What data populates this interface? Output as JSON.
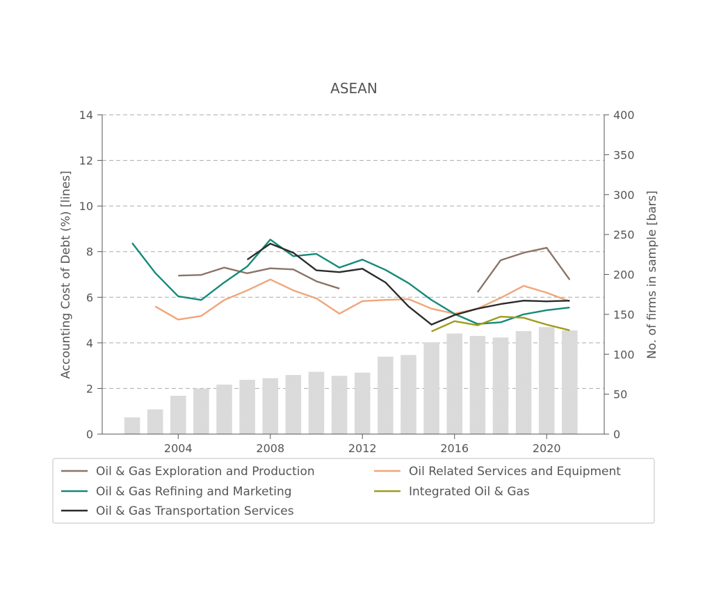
{
  "chart_data": {
    "type": "line",
    "title": "ASEAN",
    "ylabel": "Accounting Cost of Debt (%)  [lines]",
    "y2label": "No. of firms in sample  [bars]",
    "xlim": [
      2000.7,
      2022.5
    ],
    "ylim": [
      0,
      14
    ],
    "y2lim": [
      0,
      400
    ],
    "x_ticks": [
      2004,
      2008,
      2012,
      2016,
      2020
    ],
    "y_ticks": [
      0,
      2,
      4,
      6,
      8,
      10,
      12,
      14
    ],
    "y2_ticks": [
      0,
      50,
      100,
      150,
      200,
      250,
      300,
      350,
      400
    ],
    "grid": "horizontal dashed",
    "legend_position": "below-plot",
    "bars": {
      "name": "No. of firms in sample",
      "color": "#dddddd",
      "x": [
        2002,
        2003,
        2004,
        2005,
        2006,
        2007,
        2008,
        2009,
        2010,
        2011,
        2012,
        2013,
        2014,
        2015,
        2016,
        2017,
        2018,
        2019,
        2020,
        2021
      ],
      "values": [
        21,
        31,
        48,
        57,
        62,
        68,
        70,
        74,
        78,
        73,
        77,
        97,
        99,
        115,
        126,
        123,
        121,
        129,
        134,
        130
      ]
    },
    "series": [
      {
        "name": "Oil & Gas Exploration and Production",
        "color": "#8c7367",
        "x": [
          2004,
          2005,
          2006,
          2007,
          2008,
          2009,
          2010,
          2011,
          2017,
          2018,
          2019,
          2020,
          2021
        ],
        "values": [
          6.95,
          6.98,
          7.3,
          7.05,
          7.27,
          7.22,
          6.7,
          6.38,
          6.22,
          7.62,
          7.95,
          8.17,
          6.77
        ],
        "segments": [
          [
            0,
            7
          ],
          [
            8,
            12
          ]
        ]
      },
      {
        "name": "Oil Related Services and Equipment",
        "color": "#f0a57a",
        "x": [
          2003,
          2004,
          2005,
          2006,
          2007,
          2008,
          2009,
          2010,
          2011,
          2012,
          2013,
          2014,
          2015,
          2016,
          2017,
          2018,
          2019,
          2020,
          2021
        ],
        "values": [
          5.6,
          5.02,
          5.18,
          5.88,
          6.3,
          6.78,
          6.3,
          5.95,
          5.28,
          5.83,
          5.88,
          5.92,
          5.5,
          5.28,
          5.5,
          5.97,
          6.5,
          6.2,
          5.82
        ],
        "segments": [
          [
            0,
            18
          ]
        ]
      },
      {
        "name": "Oil & Gas Refining and Marketing",
        "color": "#148a78",
        "x": [
          2002,
          2003,
          2004,
          2005,
          2006,
          2007,
          2008,
          2009,
          2010,
          2011,
          2012,
          2013,
          2014,
          2015,
          2016,
          2017,
          2018,
          2019,
          2020,
          2021
        ],
        "values": [
          8.38,
          7.07,
          6.04,
          5.88,
          6.65,
          7.35,
          8.53,
          7.8,
          7.9,
          7.3,
          7.65,
          7.2,
          6.62,
          5.88,
          5.27,
          4.83,
          4.9,
          5.25,
          5.43,
          5.55
        ],
        "segments": [
          [
            0,
            19
          ]
        ]
      },
      {
        "name": "Integrated Oil & Gas",
        "color": "#a09a1a",
        "x": [
          2015,
          2016,
          2017,
          2018,
          2019,
          2020,
          2021
        ],
        "values": [
          4.5,
          4.95,
          4.77,
          5.15,
          5.1,
          4.8,
          4.55
        ],
        "segments": [
          [
            0,
            6
          ]
        ]
      },
      {
        "name": "Oil & Gas Transportation Services",
        "color": "#2b2b2b",
        "x": [
          2007,
          2008,
          2009,
          2010,
          2011,
          2012,
          2013,
          2014,
          2015,
          2016,
          2017,
          2018,
          2019,
          2020,
          2021
        ],
        "values": [
          7.65,
          8.35,
          7.95,
          7.18,
          7.1,
          7.25,
          6.65,
          5.6,
          4.8,
          5.22,
          5.5,
          5.7,
          5.85,
          5.82,
          5.85
        ],
        "segments": [
          [
            0,
            14
          ]
        ]
      }
    ],
    "legend_columns": [
      [
        0,
        2,
        4
      ],
      [
        1,
        3
      ]
    ]
  }
}
